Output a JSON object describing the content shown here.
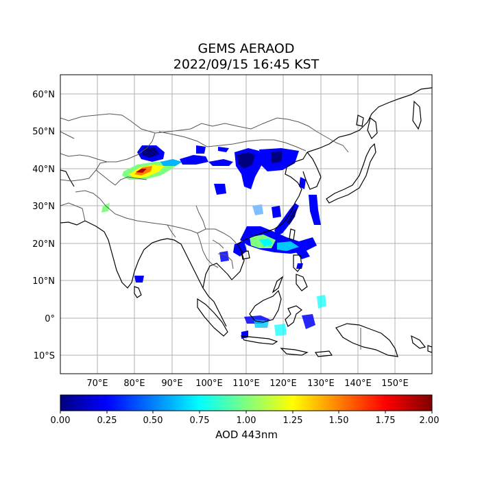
{
  "title": "GEMS AERAOD",
  "subtitle": "2022/09/15 16:45 KST",
  "colorbar": {
    "label": "AOD 443nm",
    "range": [
      0.0,
      2.0
    ],
    "ticks": [
      "0.00",
      "0.25",
      "0.50",
      "0.75",
      "1.00",
      "1.25",
      "1.50",
      "1.75",
      "2.00"
    ],
    "colormap": [
      "#00007f",
      "#0000ff",
      "#007fff",
      "#00ffff",
      "#7fff7f",
      "#ffff00",
      "#ff7f00",
      "#ff0000",
      "#7f0000"
    ]
  },
  "map": {
    "lon_range": [
      60,
      160
    ],
    "lat_range": [
      -15,
      65
    ],
    "lon_ticks": [
      "70°E",
      "80°E",
      "90°E",
      "100°E",
      "110°E",
      "120°E",
      "130°E",
      "140°E",
      "150°E"
    ],
    "lat_ticks": [
      "60°N",
      "50°N",
      "40°N",
      "30°N",
      "20°N",
      "10°N",
      "0°",
      "10°S"
    ],
    "gridlines": true
  }
}
